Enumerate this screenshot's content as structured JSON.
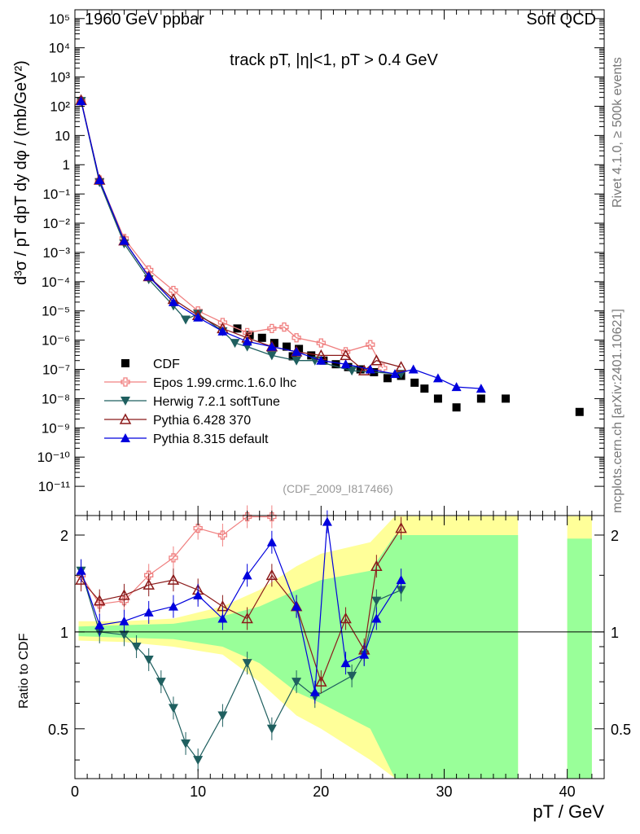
{
  "header": {
    "left": "1960 GeV ppbar",
    "right": "Soft QCD"
  },
  "side": {
    "rivet": "Rivet 4.1.0, ≥ 500k events",
    "source": "mcplots.cern.ch [arXiv:2401.10621]"
  },
  "watermark": "(CDF_2009_I817466)",
  "chart_data": {
    "type": "scatter",
    "title": "track pT, |η|<1, pT > 0.4 GeV",
    "xlabel": "pT / GeV",
    "ylabel": "d³σ / pT dpT dy dφ / (mb/GeV²)",
    "ratio_ylabel": "Ratio to CDF",
    "xlim": [
      0,
      43
    ],
    "ylim_log10": [
      -12,
      5.3
    ],
    "ratio_ylim": [
      0.35,
      2.3
    ],
    "x_ticks": [
      "0",
      "10",
      "20",
      "30",
      "40"
    ],
    "y_ticks": [
      "10⁵",
      "10⁴",
      "10³",
      "10²",
      "10",
      "1",
      "10⁻¹",
      "10⁻²",
      "10⁻³",
      "10⁻⁴",
      "10⁻⁵",
      "10⁻⁶",
      "10⁻⁷",
      "10⁻⁸",
      "10⁻⁹",
      "10⁻¹⁰",
      "10⁻¹¹"
    ],
    "ratio_ticks": [
      "0.5",
      "1",
      "2"
    ],
    "legend": [
      {
        "name": "CDF",
        "color": "#000000",
        "marker": "square"
      },
      {
        "name": "Epos 1.99.crmc.1.6.0 lhc",
        "color": "#f08080",
        "marker": "open-cross"
      },
      {
        "name": "Herwig 7.2.1 softTune",
        "color": "#1f5f5f",
        "marker": "triangle-down"
      },
      {
        "name": "Pythia 6.428 370",
        "color": "#8b1a1a",
        "marker": "open-triangle"
      },
      {
        "name": "Pythia 8.315 default",
        "color": "#0000dd",
        "marker": "triangle"
      }
    ],
    "series": [
      {
        "name": "CDF",
        "x": [
          13.2,
          14.2,
          15.2,
          16.2,
          17.2,
          17.7,
          18.2,
          19.2,
          20.2,
          21.2,
          22.2,
          23.2,
          24.3,
          25.4,
          26.5,
          27.6,
          28.4,
          29.5,
          31.0,
          33.0,
          35.0,
          41.0
        ],
        "y": [
          2.5e-06,
          1.5e-06,
          1.2e-06,
          8e-07,
          6e-07,
          2.8e-07,
          5e-07,
          3e-07,
          2e-07,
          1.5e-07,
          1.2e-07,
          1e-07,
          8e-08,
          5e-08,
          6e-08,
          3.5e-08,
          2.2e-08,
          1e-08,
          5e-09,
          1e-08,
          1e-08,
          3.5e-09
        ]
      },
      {
        "name": "Epos 1.99.crmc.1.6.0 lhc",
        "x": [
          0.5,
          2,
          4,
          6,
          8,
          10,
          12,
          14,
          16,
          17,
          18,
          20,
          22,
          24,
          25
        ],
        "y": [
          150,
          0.3,
          0.003,
          0.00025,
          5e-05,
          1e-05,
          4e-06,
          1.8e-06,
          2.5e-06,
          2.8e-06,
          1.2e-06,
          8e-07,
          4e-07,
          7e-07,
          1.1e-07
        ]
      },
      {
        "name": "Herwig 7.2.1 softTune",
        "x": [
          0.5,
          2,
          4,
          6,
          8,
          9,
          10,
          12,
          13,
          14,
          16,
          18,
          19.5,
          22.5,
          26.5
        ],
        "y": [
          150,
          0.25,
          0.002,
          0.00012,
          1.5e-05,
          5e-06,
          8e-06,
          2e-06,
          8e-07,
          6e-07,
          3e-07,
          2e-07,
          2e-07,
          9e-08,
          7e-08
        ]
      },
      {
        "name": "Pythia 6.428 370",
        "x": [
          0.5,
          2,
          4,
          6,
          8,
          10,
          12,
          14,
          16,
          18,
          20,
          22,
          23.5,
          24.5,
          26.5
        ],
        "y": [
          160,
          0.3,
          0.0025,
          0.00015,
          2.5e-05,
          7e-06,
          2.5e-06,
          1.2e-06,
          6e-07,
          4e-07,
          3e-07,
          3e-07,
          9e-08,
          2e-07,
          1.2e-07
        ]
      },
      {
        "name": "Pythia 8.315 default",
        "x": [
          0.5,
          2,
          4,
          6,
          8,
          10,
          12,
          14,
          16,
          18,
          20,
          22,
          24,
          26,
          27.5,
          29.5,
          31,
          33
        ],
        "y": [
          150,
          0.3,
          0.0025,
          0.00015,
          2e-05,
          6e-06,
          2e-06,
          9e-07,
          6e-07,
          4e-07,
          2e-07,
          1.5e-07,
          1e-07,
          7e-08,
          1e-07,
          5e-08,
          2.5e-08,
          2.2e-08
        ]
      }
    ],
    "ratio_series": [
      {
        "name": "Epos 1.99.crmc.1.6.0 lhc",
        "x": [
          0.5,
          2,
          4,
          6,
          8,
          10,
          12,
          14,
          16
        ],
        "y": [
          1.5,
          1.22,
          1.25,
          1.5,
          1.7,
          2.1,
          2.0,
          2.3,
          2.5
        ]
      },
      {
        "name": "Herwig 7.2.1 softTune",
        "x": [
          0.5,
          2,
          4,
          5,
          6,
          7,
          8,
          9,
          10,
          12,
          14,
          16,
          18,
          19.5,
          22.5,
          23.5,
          24.5,
          26.5
        ],
        "y": [
          1.55,
          1.0,
          0.98,
          0.9,
          0.82,
          0.7,
          0.58,
          0.45,
          0.4,
          0.55,
          0.8,
          0.5,
          0.7,
          0.63,
          0.73,
          0.85,
          1.25,
          1.35
        ]
      },
      {
        "name": "Pythia 6.428 370",
        "x": [
          0.5,
          2,
          4,
          6,
          8,
          10,
          12,
          14,
          16,
          18,
          20,
          22,
          23.5,
          24.5,
          26.5
        ],
        "y": [
          1.45,
          1.25,
          1.3,
          1.4,
          1.45,
          1.35,
          1.2,
          1.1,
          1.5,
          1.2,
          0.7,
          1.1,
          0.88,
          1.6,
          2.1
        ]
      },
      {
        "name": "Pythia 8.315 default",
        "x": [
          0.5,
          2,
          4,
          6,
          8,
          10,
          12,
          14,
          16,
          18,
          19.5,
          20.5,
          22,
          23.5,
          24.5,
          26.5
        ],
        "y": [
          1.55,
          1.05,
          1.08,
          1.15,
          1.2,
          1.3,
          1.1,
          1.5,
          1.9,
          1.2,
          0.65,
          2.2,
          0.8,
          0.85,
          1.1,
          1.45
        ]
      }
    ],
    "uncertainty_bands": [
      {
        "name": "inner",
        "color": "#99ff99"
      },
      {
        "name": "outer",
        "color": "#ffff99"
      }
    ]
  }
}
